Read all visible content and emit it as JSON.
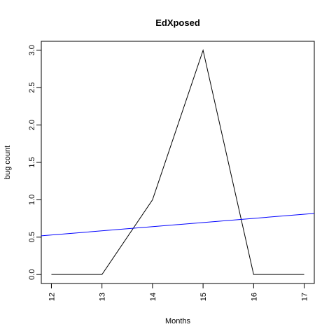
{
  "chart_data": {
    "type": "line",
    "title": "EdXposed",
    "xlabel": "Months",
    "ylabel": "bug count",
    "x": [
      12,
      13,
      14,
      15,
      16,
      17
    ],
    "series": [
      {
        "values": [
          0,
          0,
          1,
          3,
          0,
          0
        ],
        "color": "#000000"
      }
    ],
    "trend_line": {
      "x": [
        11.8,
        17.2
      ],
      "y": [
        0.518,
        0.818
      ],
      "color": "#0000ff"
    },
    "xlim": [
      11.8,
      17.2
    ],
    "ylim": [
      -0.12,
      3.12
    ],
    "xticks": [
      12,
      13,
      14,
      15,
      16,
      17
    ],
    "xtick_labels": [
      "12",
      "13",
      "14",
      "15",
      "16",
      "17"
    ],
    "yticks": [
      0.0,
      0.5,
      1.0,
      1.5,
      2.0,
      2.5,
      3.0
    ],
    "ytick_labels": [
      "0.0",
      "0.5",
      "1.0",
      "1.5",
      "2.0",
      "2.5",
      "3.0"
    ],
    "grid": false,
    "legend": "none"
  }
}
